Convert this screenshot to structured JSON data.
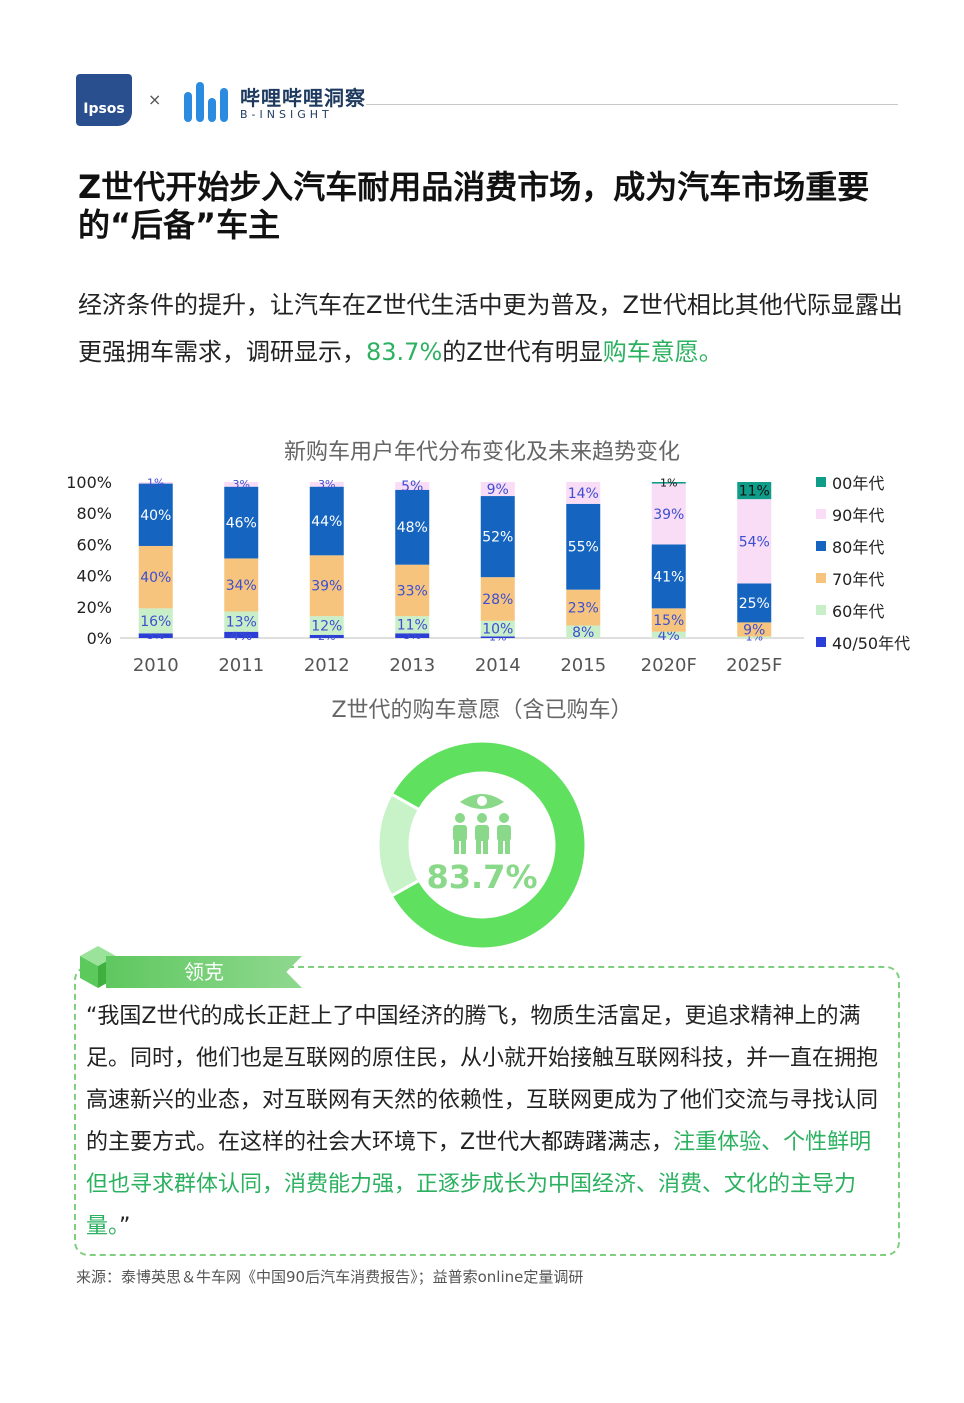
{
  "header": {
    "ipsos_logo": "Ipsos",
    "separator": "×",
    "bilibili_name": "哔哩哔哩洞察",
    "bilibili_sub": "B-INSIGHT"
  },
  "title": "Z世代开始步入汽车耐用品消费市场，成为汽车市场重要的“后备”车主",
  "lead": {
    "part1": "经济条件的提升，让汽车在Z世代生活中更为普及，Z世代相比其他代际显露出更强拥车需求，调研显示，",
    "highlight1": "83.7%",
    "part2": "的Z世代有明显",
    "highlight2": "购车意愿。"
  },
  "chart_data": [
    {
      "type": "bar",
      "stacked": true,
      "title": "新购车用户年代分布变化及未来趋势变化",
      "categories": [
        "2010",
        "2011",
        "2012",
        "2013",
        "2014",
        "2015",
        "2020F",
        "2025F"
      ],
      "ylim": [
        0,
        100
      ],
      "yticks": [
        "0%",
        "20%",
        "40%",
        "60%",
        "80%",
        "100%"
      ],
      "legend_position": "right",
      "series": [
        {
          "name": "40/50年代",
          "color": "#2b3fd6",
          "values": [
            3,
            4,
            2,
            3,
            1,
            0,
            0,
            0
          ],
          "labels": [
            "3%",
            "4%",
            "2%",
            "3%",
            "1%",
            "",
            "",
            ""
          ]
        },
        {
          "name": "60年代",
          "color": "#c9efc9",
          "values": [
            16,
            13,
            12,
            11,
            10,
            8,
            4,
            1
          ],
          "labels": [
            "16%",
            "13%",
            "12%",
            "11%",
            "10%",
            "8%",
            "4%",
            "1%"
          ]
        },
        {
          "name": "70年代",
          "color": "#f7c47e",
          "values": [
            40,
            34,
            39,
            33,
            28,
            23,
            15,
            9
          ],
          "labels": [
            "40%",
            "34%",
            "39%",
            "33%",
            "28%",
            "23%",
            "15%",
            "9%"
          ]
        },
        {
          "name": "80年代",
          "color": "#1565c0",
          "values": [
            40,
            46,
            44,
            48,
            52,
            55,
            41,
            25
          ],
          "labels": [
            "40%",
            "46%",
            "44%",
            "48%",
            "52%",
            "55%",
            "41%",
            "25%"
          ]
        },
        {
          "name": "90年代",
          "color": "#f9dcf6",
          "values": [
            1,
            3,
            3,
            5,
            9,
            14,
            39,
            54
          ],
          "labels": [
            "1%",
            "3%",
            "3%",
            "5%",
            "9%",
            "14%",
            "39%",
            "54%"
          ]
        },
        {
          "name": "00年代",
          "color": "#0f9d8a",
          "values": [
            0,
            0,
            0,
            0,
            0,
            0,
            1,
            11
          ],
          "labels": [
            "",
            "",
            "",
            "",
            "",
            "",
            "1%",
            "11%"
          ]
        }
      ]
    },
    {
      "type": "pie",
      "donut": true,
      "title": "Z世代的购车意愿（含已购车）",
      "center_label": "83.7%",
      "values": [
        83.7,
        16.3
      ],
      "colors": [
        "#5fe05f",
        "#c8f2c8"
      ]
    }
  ],
  "quote": {
    "tag": "领克",
    "text_normal": "“我国Z世代的成长正赶上了中国经济的腾飞，物质生活富足，更追求精神上的满足。同时，他们也是互联网的原住民，从小就开始接触互联网科技，并一直在拥抱高速新兴的业态，对互联网有天然的依赖性，互联网更成为了他们交流与寻找认同的主要方式。在这样的社会大环境下，Z世代大都踌躇满志，",
    "text_highlight": "注重体验、个性鲜明但也寻求群体认同，消费能力强，正逐步成长为中国经济、消费、文化的主导力量。",
    "text_end": "”"
  },
  "source": "来源：泰博英思＆牛车网《中国90后汽车消费报告》；益普索online定量调研"
}
